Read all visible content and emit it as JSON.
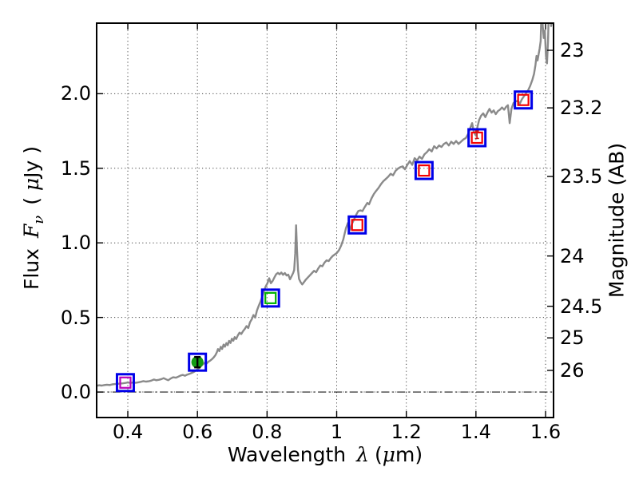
{
  "labels": {
    "x_prefix": "Wavelength",
    "x_lambda": "λ",
    "x_open": "(",
    "x_mu": "μ",
    "x_close": "m)",
    "y_left_prefix": "Flux",
    "y_left_symbol": "F",
    "y_left_sub": "ν",
    "y_left_open": "( ",
    "y_left_mu": "μ",
    "y_left_close": "Jy )",
    "y_right": "Magnitude (AB)"
  },
  "chart_data": {
    "type": "line",
    "title": "",
    "xlabel": "Wavelength λ (μm)",
    "ylabel_left": "Flux Fν ( μJy )",
    "ylabel_right": "Magnitude (AB)",
    "xlim": [
      0.3105,
      1.6229
    ],
    "ylim_flux": [
      -0.171,
      2.473
    ],
    "grid": true,
    "grid_style": "dotted",
    "zero_line_flux": 0.0,
    "x_ticks": [
      {
        "label": "0.4",
        "value": 0.4
      },
      {
        "label": "0.6",
        "value": 0.6
      },
      {
        "label": "0.8",
        "value": 0.8
      },
      {
        "label": "1",
        "value": 1.0
      },
      {
        "label": "1.2",
        "value": 1.2
      },
      {
        "label": "1.4",
        "value": 1.4
      },
      {
        "label": "1.6",
        "value": 1.6
      }
    ],
    "y_ticks_flux": [
      {
        "label": "0.0",
        "value": 0.0
      },
      {
        "label": "0.5",
        "value": 0.5
      },
      {
        "label": "1.0",
        "value": 1.0
      },
      {
        "label": "1.5",
        "value": 1.5
      },
      {
        "label": "2.0",
        "value": 2.0
      }
    ],
    "y_ticks_mag": [
      {
        "label": "23",
        "flux": 2.291
      },
      {
        "label": "23.2",
        "flux": 1.905
      },
      {
        "label": "23.5",
        "flux": 1.445
      },
      {
        "label": "24",
        "flux": 0.912
      },
      {
        "label": "24.5",
        "flux": 0.575
      },
      {
        "label": "25",
        "flux": 0.363
      },
      {
        "label": "26",
        "flux": 0.145
      }
    ],
    "colors": {
      "spectrum": "#8a8a8a",
      "blue": "#0000e8",
      "red": "#f40000",
      "green_square": "#00b300",
      "green_circle": "#139c13",
      "magenta": "#bb00bb",
      "grid": "#444444",
      "frame": "#000000"
    },
    "spectrum": {
      "name": "model-spectrum",
      "points": [
        [
          0.3105,
          0.042
        ],
        [
          0.318,
          0.045
        ],
        [
          0.325,
          0.043
        ],
        [
          0.333,
          0.047
        ],
        [
          0.34,
          0.049
        ],
        [
          0.348,
          0.047
        ],
        [
          0.355,
          0.051
        ],
        [
          0.363,
          0.053
        ],
        [
          0.37,
          0.055
        ],
        [
          0.378,
          0.057
        ],
        [
          0.385,
          0.058
        ],
        [
          0.393,
          0.061
        ],
        [
          0.4,
          0.064
        ],
        [
          0.408,
          0.061
        ],
        [
          0.415,
          0.064
        ],
        [
          0.423,
          0.062
        ],
        [
          0.43,
          0.065
        ],
        [
          0.438,
          0.069
        ],
        [
          0.445,
          0.073
        ],
        [
          0.452,
          0.07
        ],
        [
          0.46,
          0.072
        ],
        [
          0.468,
          0.077
        ],
        [
          0.475,
          0.084
        ],
        [
          0.482,
          0.079
        ],
        [
          0.49,
          0.082
        ],
        [
          0.497,
          0.087
        ],
        [
          0.503,
          0.093
        ],
        [
          0.51,
          0.085
        ],
        [
          0.516,
          0.079
        ],
        [
          0.523,
          0.09
        ],
        [
          0.53,
          0.099
        ],
        [
          0.538,
          0.096
        ],
        [
          0.545,
          0.103
        ],
        [
          0.552,
          0.111
        ],
        [
          0.558,
          0.115
        ],
        [
          0.564,
          0.109
        ],
        [
          0.571,
          0.117
        ],
        [
          0.578,
          0.123
        ],
        [
          0.585,
          0.129
        ],
        [
          0.592,
          0.138
        ],
        [
          0.598,
          0.148
        ],
        [
          0.604,
          0.16
        ],
        [
          0.61,
          0.173
        ],
        [
          0.616,
          0.186
        ],
        [
          0.621,
          0.196
        ],
        [
          0.626,
          0.19
        ],
        [
          0.631,
          0.202
        ],
        [
          0.637,
          0.211
        ],
        [
          0.642,
          0.221
        ],
        [
          0.647,
          0.233
        ],
        [
          0.652,
          0.248
        ],
        [
          0.656,
          0.268
        ],
        [
          0.659,
          0.288
        ],
        [
          0.663,
          0.274
        ],
        [
          0.667,
          0.303
        ],
        [
          0.671,
          0.289
        ],
        [
          0.675,
          0.318
        ],
        [
          0.679,
          0.304
        ],
        [
          0.683,
          0.328
        ],
        [
          0.687,
          0.314
        ],
        [
          0.691,
          0.343
        ],
        [
          0.695,
          0.329
        ],
        [
          0.699,
          0.357
        ],
        [
          0.703,
          0.344
        ],
        [
          0.707,
          0.368
        ],
        [
          0.711,
          0.355
        ],
        [
          0.716,
          0.379
        ],
        [
          0.721,
          0.398
        ],
        [
          0.726,
          0.389
        ],
        [
          0.731,
          0.408
        ],
        [
          0.736,
          0.423
        ],
        [
          0.741,
          0.442
        ],
        [
          0.746,
          0.429
        ],
        [
          0.751,
          0.468
        ],
        [
          0.756,
          0.488
        ],
        [
          0.761,
          0.516
        ],
        [
          0.766,
          0.499
        ],
        [
          0.771,
          0.547
        ],
        [
          0.776,
          0.578
        ],
        [
          0.781,
          0.606
        ],
        [
          0.786,
          0.637
        ],
        [
          0.791,
          0.676
        ],
        [
          0.796,
          0.708
        ],
        [
          0.801,
          0.729
        ],
        [
          0.806,
          0.763
        ],
        [
          0.811,
          0.729
        ],
        [
          0.816,
          0.744
        ],
        [
          0.821,
          0.768
        ],
        [
          0.826,
          0.789
        ],
        [
          0.831,
          0.799
        ],
        [
          0.836,
          0.789
        ],
        [
          0.841,
          0.801
        ],
        [
          0.846,
          0.786
        ],
        [
          0.851,
          0.798
        ],
        [
          0.856,
          0.781
        ],
        [
          0.861,
          0.787
        ],
        [
          0.866,
          0.756
        ],
        [
          0.871,
          0.779
        ],
        [
          0.875,
          0.798
        ],
        [
          0.878,
          0.818
        ],
        [
          0.881,
          0.928
        ],
        [
          0.8835,
          1.118
        ],
        [
          0.886,
          0.958
        ],
        [
          0.889,
          0.818
        ],
        [
          0.892,
          0.758
        ],
        [
          0.896,
          0.738
        ],
        [
          0.901,
          0.721
        ],
        [
          0.906,
          0.736
        ],
        [
          0.911,
          0.752
        ],
        [
          0.917,
          0.767
        ],
        [
          0.923,
          0.783
        ],
        [
          0.929,
          0.798
        ],
        [
          0.935,
          0.813
        ],
        [
          0.941,
          0.803
        ],
        [
          0.947,
          0.828
        ],
        [
          0.953,
          0.848
        ],
        [
          0.959,
          0.843
        ],
        [
          0.965,
          0.868
        ],
        [
          0.971,
          0.883
        ],
        [
          0.977,
          0.878
        ],
        [
          0.983,
          0.898
        ],
        [
          0.989,
          0.913
        ],
        [
          0.995,
          0.923
        ],
        [
          1.001,
          0.933
        ],
        [
          1.007,
          0.953
        ],
        [
          1.013,
          0.983
        ],
        [
          1.019,
          1.023
        ],
        [
          1.0265,
          1.098
        ],
        [
          1.032,
          1.133
        ],
        [
          1.038,
          1.088
        ],
        [
          1.044,
          1.128
        ],
        [
          1.05,
          1.158
        ],
        [
          1.056,
          1.188
        ],
        [
          1.062,
          1.213
        ],
        [
          1.068,
          1.218
        ],
        [
          1.074,
          1.213
        ],
        [
          1.08,
          1.238
        ],
        [
          1.088,
          1.268
        ],
        [
          1.093,
          1.258
        ],
        [
          1.1,
          1.298
        ],
        [
          1.107,
          1.328
        ],
        [
          1.113,
          1.348
        ],
        [
          1.12,
          1.368
        ],
        [
          1.127,
          1.393
        ],
        [
          1.134,
          1.413
        ],
        [
          1.141,
          1.428
        ],
        [
          1.148,
          1.443
        ],
        [
          1.155,
          1.463
        ],
        [
          1.162,
          1.453
        ],
        [
          1.169,
          1.483
        ],
        [
          1.176,
          1.498
        ],
        [
          1.183,
          1.508
        ],
        [
          1.19,
          1.513
        ],
        [
          1.196,
          1.493
        ],
        [
          1.203,
          1.523
        ],
        [
          1.21,
          1.548
        ],
        [
          1.217,
          1.523
        ],
        [
          1.224,
          1.568
        ],
        [
          1.231,
          1.553
        ],
        [
          1.238,
          1.578
        ],
        [
          1.245,
          1.563
        ],
        [
          1.252,
          1.593
        ],
        [
          1.259,
          1.608
        ],
        [
          1.266,
          1.628
        ],
        [
          1.273,
          1.613
        ],
        [
          1.28,
          1.648
        ],
        [
          1.287,
          1.633
        ],
        [
          1.294,
          1.653
        ],
        [
          1.301,
          1.643
        ],
        [
          1.308,
          1.663
        ],
        [
          1.315,
          1.673
        ],
        [
          1.322,
          1.653
        ],
        [
          1.329,
          1.678
        ],
        [
          1.336,
          1.663
        ],
        [
          1.343,
          1.683
        ],
        [
          1.35,
          1.663
        ],
        [
          1.357,
          1.678
        ],
        [
          1.364,
          1.693
        ],
        [
          1.371,
          1.703
        ],
        [
          1.378,
          1.733
        ],
        [
          1.384,
          1.773
        ],
        [
          1.389,
          1.803
        ],
        [
          1.394,
          1.743
        ],
        [
          1.399,
          1.723
        ],
        [
          1.404,
          1.773
        ],
        [
          1.409,
          1.823
        ],
        [
          1.415,
          1.853
        ],
        [
          1.421,
          1.868
        ],
        [
          1.427,
          1.843
        ],
        [
          1.433,
          1.873
        ],
        [
          1.439,
          1.898
        ],
        [
          1.445,
          1.873
        ],
        [
          1.451,
          1.888
        ],
        [
          1.457,
          1.863
        ],
        [
          1.463,
          1.883
        ],
        [
          1.469,
          1.893
        ],
        [
          1.475,
          1.908
        ],
        [
          1.481,
          1.893
        ],
        [
          1.487,
          1.913
        ],
        [
          1.492,
          1.923
        ],
        [
          1.497,
          1.803
        ],
        [
          1.502,
          1.898
        ],
        [
          1.508,
          1.938
        ],
        [
          1.514,
          1.948
        ],
        [
          1.52,
          1.953
        ],
        [
          1.526,
          1.933
        ],
        [
          1.532,
          1.963
        ],
        [
          1.538,
          1.983
        ],
        [
          1.544,
          2.003
        ],
        [
          1.55,
          2.023
        ],
        [
          1.556,
          2.053
        ],
        [
          1.562,
          2.093
        ],
        [
          1.567,
          2.133
        ],
        [
          1.571,
          2.193
        ],
        [
          1.574,
          2.253
        ],
        [
          1.577,
          2.223
        ],
        [
          1.58,
          2.263
        ],
        [
          1.583,
          2.303
        ],
        [
          1.586,
          2.353
        ],
        [
          1.589,
          2.62
        ],
        [
          1.592,
          2.453
        ],
        [
          1.595,
          2.373
        ],
        [
          1.598,
          2.423
        ],
        [
          1.601,
          2.253
        ],
        [
          1.604,
          2.203
        ],
        [
          1.607,
          2.353
        ],
        [
          1.61,
          2.62
        ],
        [
          1.613,
          2.58
        ],
        [
          1.616,
          2.453
        ],
        [
          1.619,
          2.493
        ],
        [
          1.6229,
          2.55
        ]
      ]
    },
    "photometry": [
      {
        "x": 0.393,
        "flux": 0.063,
        "outer": "blue-open-square",
        "inner": "magenta-open-square"
      },
      {
        "x": 0.6,
        "flux": 0.2,
        "outer": "blue-open-square",
        "inner": "green-filled-circle",
        "errorbar": {
          "color": "#000000",
          "plus": 0.035,
          "minus": 0.035,
          "cap": 4,
          "width": 2.4
        }
      },
      {
        "x": 0.81,
        "flux": 0.63,
        "outer": "blue-open-square",
        "inner": "green-open-square"
      },
      {
        "x": 1.059,
        "flux": 1.12,
        "outer": "blue-open-square",
        "inner": "red-open-square"
      },
      {
        "x": 1.251,
        "flux": 1.485,
        "outer": "blue-open-square",
        "inner": "red-open-square"
      },
      {
        "x": 1.403,
        "flux": 1.705,
        "outer": "blue-open-square",
        "inner": "red-open-square",
        "errorbar": {
          "color": "#cc1111",
          "plus": 0.045,
          "minus": 0.005,
          "cap": 2.5,
          "width": 1.6
        }
      },
      {
        "x": 1.536,
        "flux": 1.958,
        "outer": "blue-open-square",
        "inner": "red-open-square"
      }
    ]
  }
}
